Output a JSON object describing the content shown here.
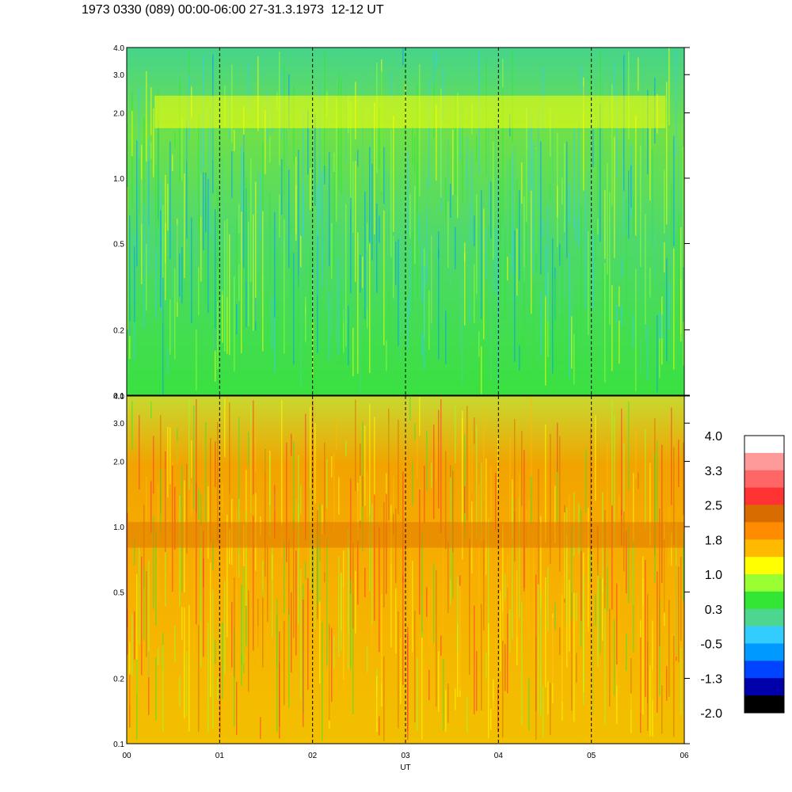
{
  "title": "1973 0330 (089) 00:00-06:00 27-31.3.1973  12-12 UT",
  "chart_data": [
    {
      "type": "heatmap",
      "panel": "upper",
      "y_scale": "log",
      "ylim": [
        0.1,
        4.0
      ],
      "y_ticks": [
        {
          "value": 4.0,
          "label": "4.0"
        },
        {
          "value": 3.0,
          "label": "3.0"
        },
        {
          "value": 2.0,
          "label": "2.0"
        },
        {
          "value": 1.0,
          "label": "1.0"
        },
        {
          "value": 0.5,
          "label": "0.5"
        },
        {
          "value": 0.2,
          "label": "0.2"
        },
        {
          "value": 0.1,
          "label": "0.1"
        }
      ],
      "xlim": [
        0,
        6
      ],
      "dominant_levels": [
        "green",
        "light green",
        "cyan"
      ],
      "features": [
        {
          "kind": "band",
          "level_color": "#ffff00",
          "y_start": 2.4,
          "y_end": 1.7,
          "x_start": 0.3,
          "x_end": 5.8
        }
      ]
    },
    {
      "type": "heatmap",
      "panel": "lower",
      "y_scale": "log",
      "ylim": [
        0.1,
        4.0
      ],
      "y_ticks": [
        {
          "value": 4.0,
          "label": "4.0"
        },
        {
          "value": 3.0,
          "label": "3.0"
        },
        {
          "value": 2.0,
          "label": "2.0"
        },
        {
          "value": 1.0,
          "label": "1.0"
        },
        {
          "value": 0.5,
          "label": "0.5"
        },
        {
          "value": 0.2,
          "label": "0.2"
        },
        {
          "value": 0.1,
          "label": "0.1"
        }
      ],
      "xlim": [
        0,
        6
      ],
      "xlabel": "UT",
      "x_ticks": [
        {
          "value": 0,
          "label": "00"
        },
        {
          "value": 1,
          "label": "01"
        },
        {
          "value": 2,
          "label": "02"
        },
        {
          "value": 3,
          "label": "03"
        },
        {
          "value": 4,
          "label": "04"
        },
        {
          "value": 5,
          "label": "05"
        },
        {
          "value": 6,
          "label": "06"
        }
      ],
      "dominant_levels": [
        "orange",
        "yellow-orange",
        "yellow"
      ],
      "features": [
        {
          "kind": "band",
          "level_color": "#e07800",
          "y_start": 1.05,
          "y_end": 0.8,
          "x_start": 0.0,
          "x_end": 6.0
        }
      ]
    }
  ],
  "colorbar": {
    "colors": [
      "#ffffff",
      "#ff9a9a",
      "#ff6666",
      "#ff3333",
      "#d96c00",
      "#ff8c00",
      "#ffba00",
      "#ffff00",
      "#99ff33",
      "#33e633",
      "#4dd68f",
      "#33ccff",
      "#0099ff",
      "#0044ff",
      "#0000aa",
      "#000000"
    ],
    "labels": [
      "4.0",
      "3.3",
      "2.5",
      "1.8",
      "1.0",
      "0.3",
      "-0.5",
      "-1.3",
      "-2.0"
    ]
  }
}
